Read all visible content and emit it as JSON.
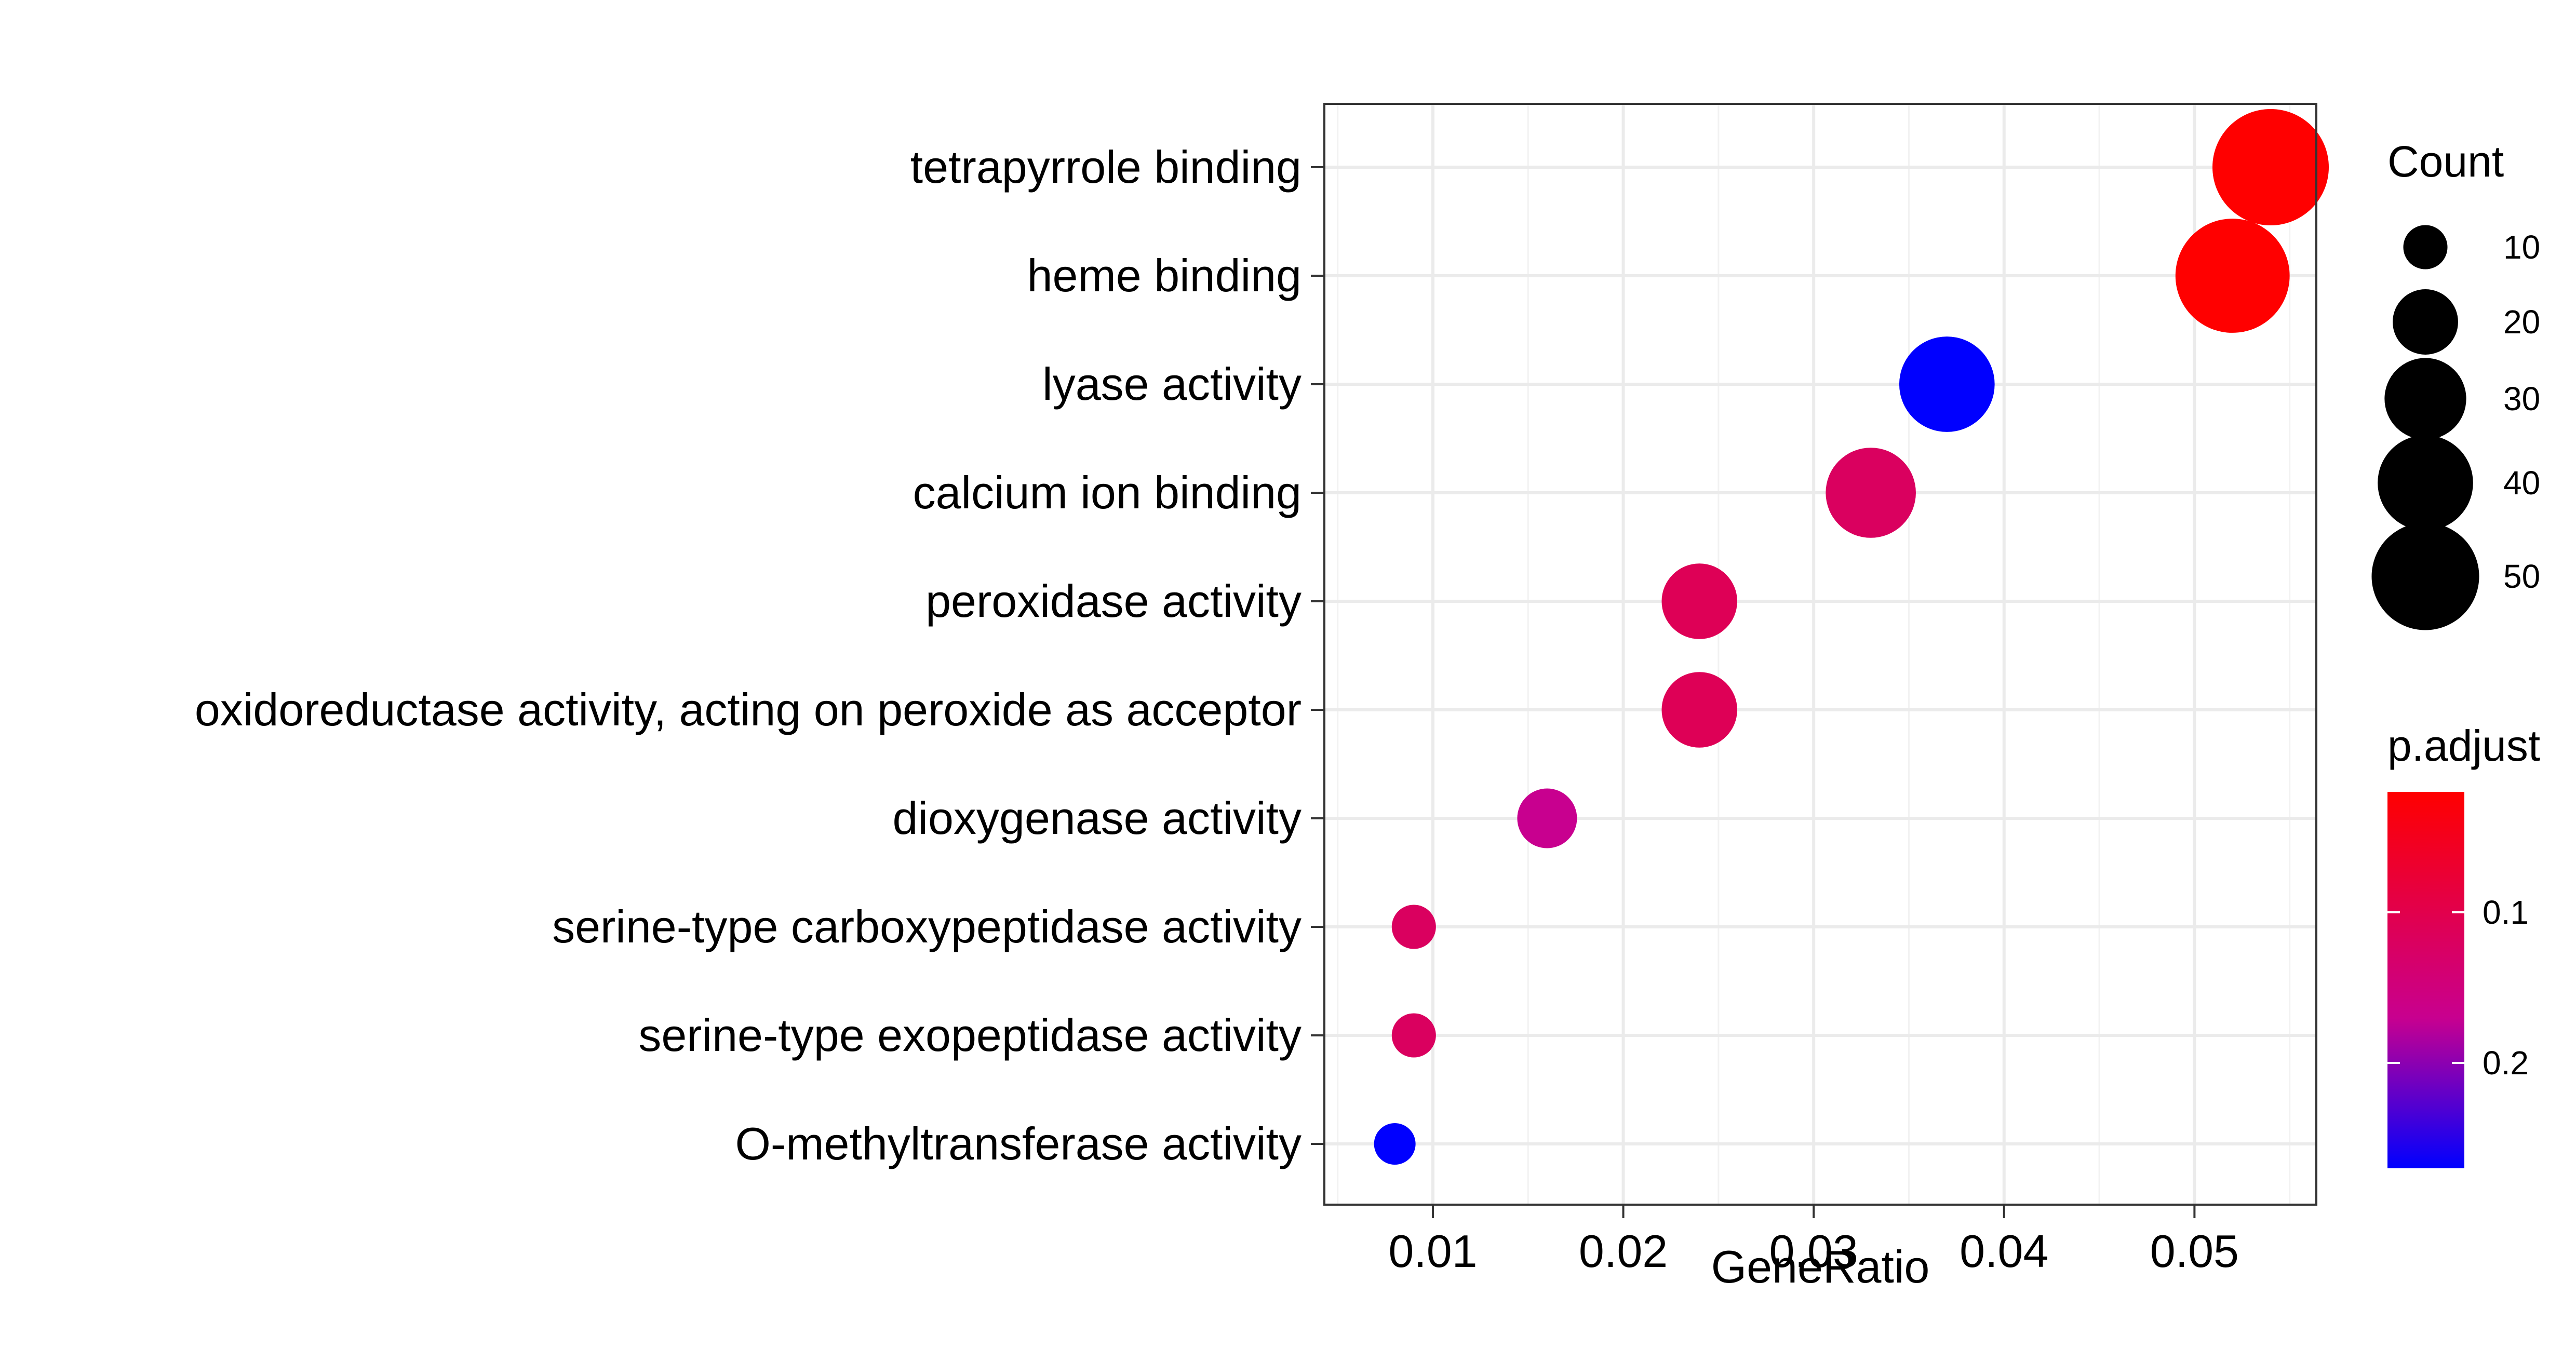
{
  "chart_data": {
    "type": "scatter",
    "xlabel": "GeneRatio",
    "xlim": [
      0.0043,
      0.0564
    ],
    "x_ticks": [
      "0.01",
      "0.02",
      "0.03",
      "0.04",
      "0.05"
    ],
    "x_tick_values": [
      0.01,
      0.02,
      0.03,
      0.04,
      0.05
    ],
    "categories": [
      "tetrapyrrole binding",
      "heme binding",
      "lyase activity",
      "calcium ion binding",
      "peroxidase activity",
      "oxidoreductase activity, acting on peroxide as acceptor",
      "dioxygenase activity",
      "serine-type carboxypeptidase activity",
      "serine-type exopeptidase activity",
      "O-methyltransferase activity"
    ],
    "points": [
      {
        "term": "tetrapyrrole binding",
        "gene_ratio": 0.054,
        "count": 58,
        "p_adjust": 0.02
      },
      {
        "term": "heme binding",
        "gene_ratio": 0.052,
        "count": 56,
        "p_adjust": 0.02
      },
      {
        "term": "lyase activity",
        "gene_ratio": 0.037,
        "count": 40,
        "p_adjust": 0.27
      },
      {
        "term": "calcium ion binding",
        "gene_ratio": 0.033,
        "count": 36,
        "p_adjust": 0.12
      },
      {
        "term": "peroxidase activity",
        "gene_ratio": 0.024,
        "count": 26,
        "p_adjust": 0.11
      },
      {
        "term": "oxidoreductase activity, acting on peroxide as acceptor",
        "gene_ratio": 0.024,
        "count": 26,
        "p_adjust": 0.11
      },
      {
        "term": "dioxygenase activity",
        "gene_ratio": 0.016,
        "count": 17,
        "p_adjust": 0.17
      },
      {
        "term": "serine-type carboxypeptidase activity",
        "gene_ratio": 0.009,
        "count": 10,
        "p_adjust": 0.12
      },
      {
        "term": "serine-type exopeptidase activity",
        "gene_ratio": 0.009,
        "count": 10,
        "p_adjust": 0.12
      },
      {
        "term": "O-methyltransferase activity",
        "gene_ratio": 0.008,
        "count": 9,
        "p_adjust": 0.27
      }
    ],
    "size_legend": {
      "title": "Count",
      "values": [
        10,
        20,
        30,
        40,
        50
      ]
    },
    "color_legend": {
      "title": "p.adjust",
      "range": [
        0.02,
        0.27
      ],
      "tick_labels": [
        "0.1",
        "0.2"
      ],
      "tick_values": [
        0.1,
        0.2
      ],
      "low_color": "#FF0000",
      "high_color": "#0000FF"
    },
    "grid": true,
    "legend_position": "right"
  }
}
